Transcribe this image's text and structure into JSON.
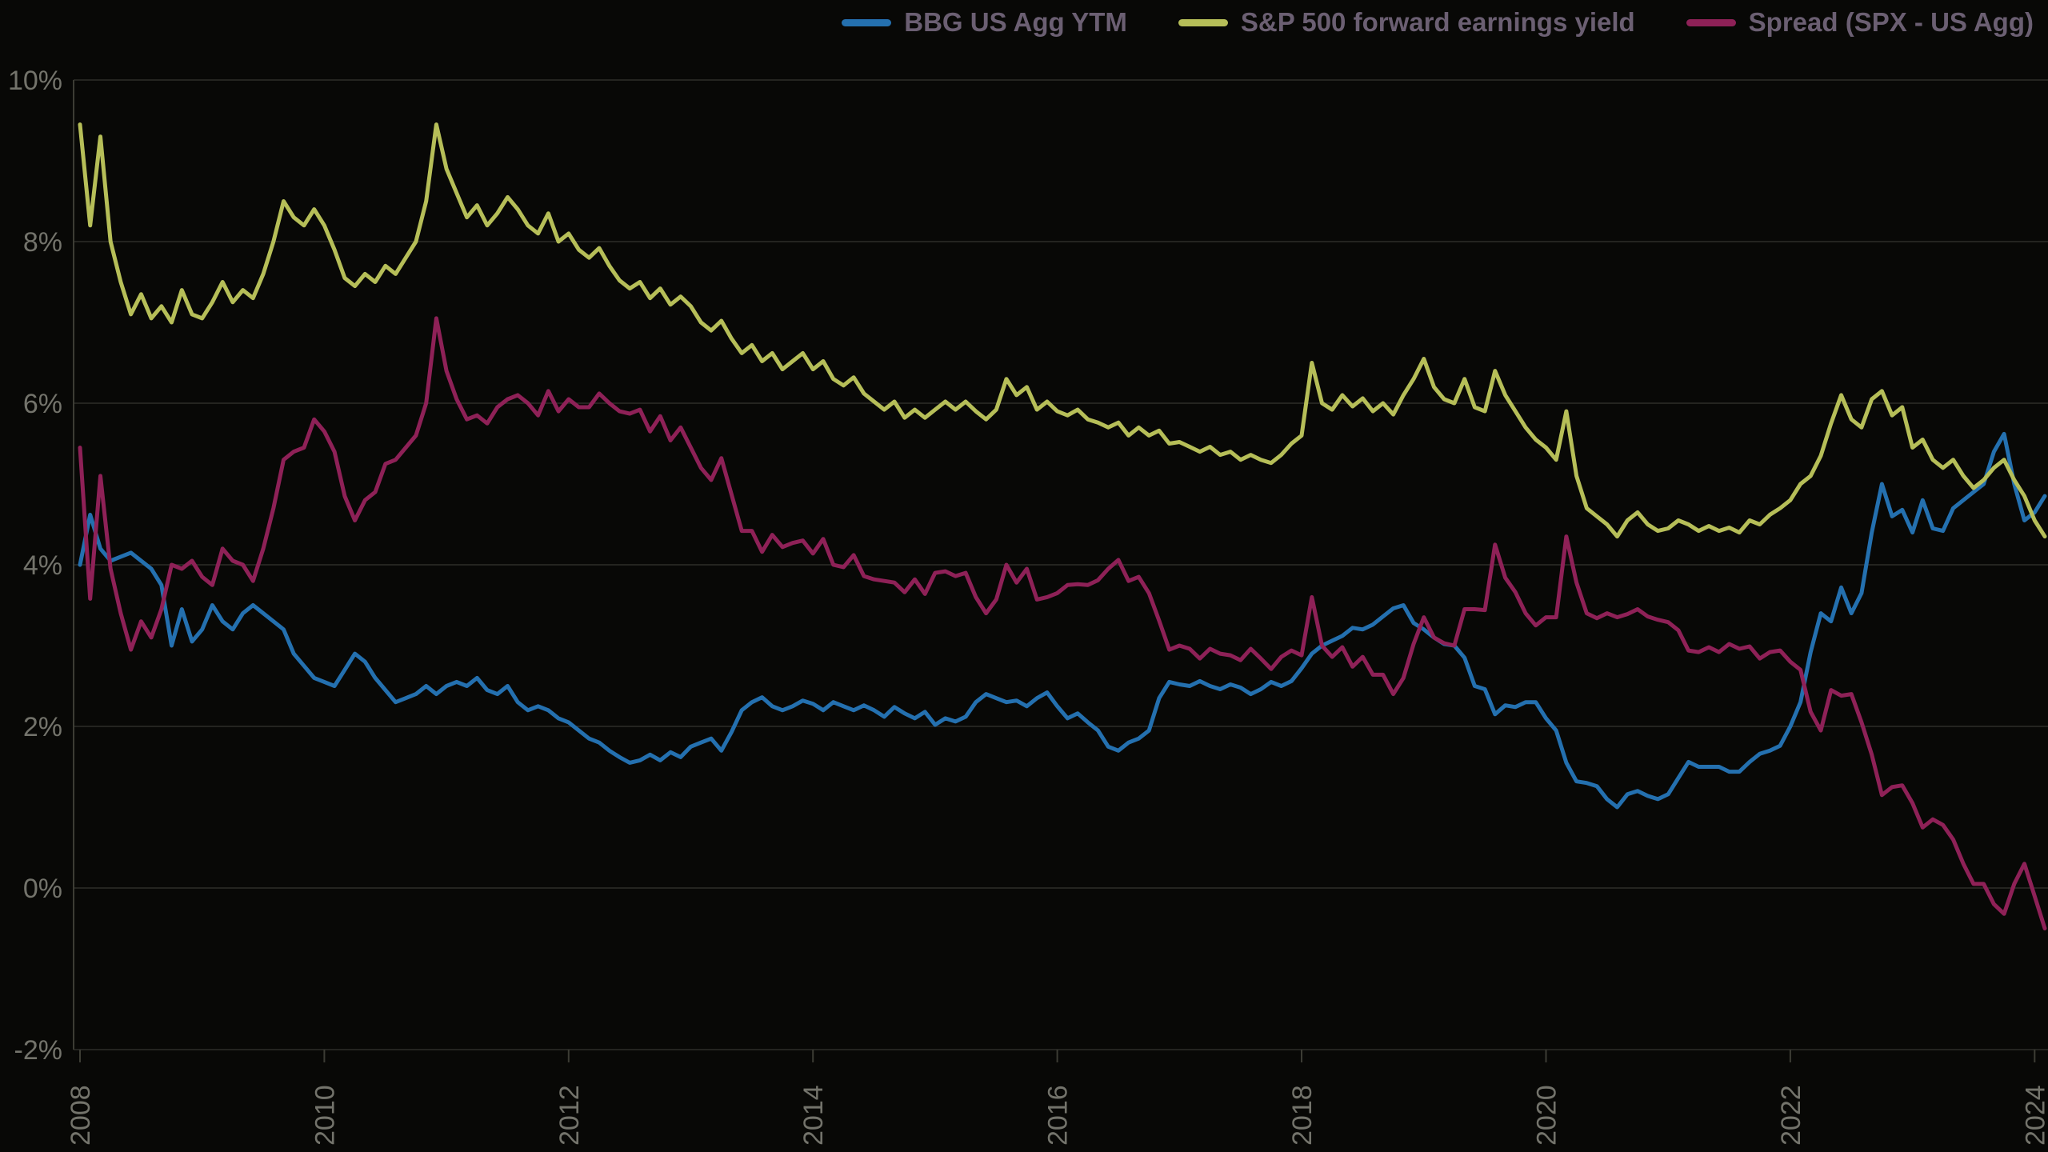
{
  "page": {
    "background_color": "#080806",
    "tick_text_color": "#73736b",
    "legend_text_color": "#6b5f72",
    "gridline_color": "#2e2e28",
    "spine_color": "#3c3c34"
  },
  "chart_data": {
    "type": "line",
    "title": "",
    "xlabel": "",
    "ylabel": "",
    "grid": "horizontal",
    "legend_position": "top-right",
    "ylim": [
      -2,
      10
    ],
    "y_ticks": [
      10,
      8,
      6,
      4,
      2,
      0,
      -2
    ],
    "y_tick_suffix": "%",
    "x_start_year": 2008,
    "x_interval_months": 1,
    "x_end": "2024-02",
    "x_tick_years": [
      2008,
      2010,
      2012,
      2014,
      2016,
      2018,
      2020,
      2022,
      2024
    ],
    "series": [
      {
        "name": "BBG US Agg YTM",
        "color": "#2470af",
        "values": [
          4.0,
          4.62,
          4.2,
          4.05,
          4.1,
          4.15,
          4.05,
          3.95,
          3.75,
          3.0,
          3.45,
          3.05,
          3.2,
          3.5,
          3.3,
          3.2,
          3.4,
          3.5,
          3.4,
          3.3,
          3.2,
          2.9,
          2.75,
          2.6,
          2.55,
          2.5,
          2.7,
          2.9,
          2.8,
          2.6,
          2.45,
          2.3,
          2.35,
          2.4,
          2.5,
          2.4,
          2.5,
          2.55,
          2.5,
          2.6,
          2.45,
          2.4,
          2.5,
          2.3,
          2.2,
          2.25,
          2.2,
          2.1,
          2.05,
          1.95,
          1.85,
          1.8,
          1.7,
          1.62,
          1.55,
          1.58,
          1.65,
          1.58,
          1.68,
          1.62,
          1.75,
          1.8,
          1.85,
          1.7,
          1.93,
          2.2,
          2.3,
          2.36,
          2.25,
          2.2,
          2.25,
          2.32,
          2.28,
          2.2,
          2.3,
          2.25,
          2.2,
          2.26,
          2.2,
          2.12,
          2.24,
          2.16,
          2.1,
          2.18,
          2.02,
          2.1,
          2.06,
          2.12,
          2.3,
          2.4,
          2.35,
          2.3,
          2.32,
          2.25,
          2.35,
          2.42,
          2.25,
          2.1,
          2.16,
          2.05,
          1.95,
          1.75,
          1.7,
          1.8,
          1.85,
          1.95,
          2.35,
          2.55,
          2.52,
          2.5,
          2.56,
          2.5,
          2.46,
          2.52,
          2.48,
          2.4,
          2.46,
          2.55,
          2.5,
          2.56,
          2.72,
          2.9,
          3.0,
          3.06,
          3.12,
          3.22,
          3.2,
          3.26,
          3.36,
          3.46,
          3.5,
          3.28,
          3.2,
          3.1,
          3.02,
          3.0,
          2.85,
          2.5,
          2.46,
          2.15,
          2.26,
          2.24,
          2.3,
          2.3,
          2.1,
          1.95,
          1.55,
          1.32,
          1.3,
          1.26,
          1.1,
          1.0,
          1.16,
          1.2,
          1.14,
          1.1,
          1.16,
          1.36,
          1.56,
          1.5,
          1.5,
          1.5,
          1.44,
          1.44,
          1.56,
          1.66,
          1.7,
          1.76,
          2.0,
          2.3,
          2.92,
          3.4,
          3.3,
          3.72,
          3.4,
          3.65,
          4.4,
          5.0,
          4.6,
          4.68,
          4.4,
          4.8,
          4.45,
          4.42,
          4.7,
          4.8,
          4.9,
          5.0,
          5.4,
          5.62,
          5.0,
          4.55,
          4.65,
          4.85
        ]
      },
      {
        "name": "S&P 500 forward earnings yield",
        "color": "#b6be58",
        "values": [
          9.45,
          8.2,
          9.3,
          8.0,
          7.5,
          7.1,
          7.35,
          7.05,
          7.2,
          7.0,
          7.4,
          7.1,
          7.05,
          7.25,
          7.5,
          7.25,
          7.4,
          7.3,
          7.6,
          8.0,
          8.5,
          8.3,
          8.2,
          8.4,
          8.2,
          7.9,
          7.55,
          7.45,
          7.6,
          7.5,
          7.7,
          7.6,
          7.8,
          8.0,
          8.5,
          9.45,
          8.9,
          8.6,
          8.3,
          8.45,
          8.2,
          8.35,
          8.55,
          8.4,
          8.2,
          8.1,
          8.35,
          8.0,
          8.1,
          7.9,
          7.8,
          7.92,
          7.7,
          7.52,
          7.42,
          7.5,
          7.3,
          7.42,
          7.22,
          7.32,
          7.2,
          7.0,
          6.9,
          7.02,
          6.8,
          6.62,
          6.72,
          6.52,
          6.62,
          6.42,
          6.52,
          6.62,
          6.42,
          6.52,
          6.3,
          6.22,
          6.32,
          6.12,
          6.02,
          5.92,
          6.02,
          5.82,
          5.92,
          5.82,
          5.92,
          6.02,
          5.92,
          6.02,
          5.9,
          5.8,
          5.92,
          6.3,
          6.1,
          6.2,
          5.92,
          6.02,
          5.9,
          5.85,
          5.92,
          5.8,
          5.76,
          5.7,
          5.76,
          5.6,
          5.7,
          5.6,
          5.66,
          5.5,
          5.52,
          5.46,
          5.4,
          5.46,
          5.36,
          5.4,
          5.3,
          5.36,
          5.3,
          5.26,
          5.36,
          5.5,
          5.6,
          6.5,
          6.0,
          5.92,
          6.1,
          5.96,
          6.06,
          5.9,
          6.0,
          5.86,
          6.1,
          6.3,
          6.55,
          6.2,
          6.05,
          6.0,
          6.3,
          5.95,
          5.9,
          6.4,
          6.1,
          5.9,
          5.7,
          5.55,
          5.45,
          5.3,
          5.9,
          5.1,
          4.7,
          4.6,
          4.5,
          4.35,
          4.55,
          4.65,
          4.5,
          4.42,
          4.45,
          4.55,
          4.5,
          4.42,
          4.48,
          4.42,
          4.46,
          4.4,
          4.55,
          4.5,
          4.62,
          4.7,
          4.8,
          5.0,
          5.1,
          5.35,
          5.75,
          6.1,
          5.8,
          5.7,
          6.05,
          6.15,
          5.85,
          5.95,
          5.45,
          5.55,
          5.3,
          5.2,
          5.3,
          5.1,
          4.95,
          5.05,
          5.2,
          5.3,
          5.05,
          4.85,
          4.55,
          4.35
        ]
      },
      {
        "name": "Spread (SPX - US Agg)",
        "color": "#8e2157",
        "values": [
          5.45,
          3.58,
          5.1,
          3.95,
          3.4,
          2.95,
          3.3,
          3.1,
          3.45,
          4.0,
          3.95,
          4.05,
          3.85,
          3.75,
          4.2,
          4.05,
          4.0,
          3.8,
          4.2,
          4.7,
          5.3,
          5.4,
          5.45,
          5.8,
          5.65,
          5.4,
          4.85,
          4.55,
          4.8,
          4.9,
          5.25,
          5.3,
          5.45,
          5.6,
          6.0,
          7.05,
          6.4,
          6.05,
          5.8,
          5.85,
          5.75,
          5.95,
          6.05,
          6.1,
          6.0,
          5.85,
          6.15,
          5.9,
          6.05,
          5.95,
          5.95,
          6.12,
          6.0,
          5.9,
          5.87,
          5.92,
          5.65,
          5.84,
          5.54,
          5.7,
          5.45,
          5.2,
          5.05,
          5.32,
          4.87,
          4.42,
          4.42,
          4.16,
          4.37,
          4.22,
          4.27,
          4.3,
          4.14,
          4.32,
          4.0,
          3.97,
          4.12,
          3.86,
          3.82,
          3.8,
          3.78,
          3.66,
          3.82,
          3.64,
          3.9,
          3.92,
          3.86,
          3.9,
          3.6,
          3.4,
          3.57,
          4.0,
          3.78,
          3.95,
          3.57,
          3.6,
          3.65,
          3.75,
          3.76,
          3.75,
          3.81,
          3.95,
          4.06,
          3.8,
          3.85,
          3.65,
          3.31,
          2.95,
          3.0,
          2.96,
          2.84,
          2.96,
          2.9,
          2.88,
          2.82,
          2.96,
          2.84,
          2.71,
          2.86,
          2.94,
          2.88,
          3.6,
          3.0,
          2.86,
          2.98,
          2.74,
          2.86,
          2.64,
          2.64,
          2.4,
          2.6,
          3.02,
          3.35,
          3.1,
          3.03,
          3.0,
          3.45,
          3.45,
          3.44,
          4.25,
          3.84,
          3.66,
          3.4,
          3.25,
          3.35,
          3.35,
          4.35,
          3.78,
          3.4,
          3.34,
          3.4,
          3.35,
          3.39,
          3.45,
          3.36,
          3.32,
          3.29,
          3.19,
          2.94,
          2.92,
          2.98,
          2.92,
          3.02,
          2.96,
          2.99,
          2.84,
          2.92,
          2.94,
          2.8,
          2.7,
          2.18,
          1.95,
          2.45,
          2.38,
          2.4,
          2.05,
          1.65,
          1.15,
          1.25,
          1.27,
          1.05,
          0.75,
          0.85,
          0.78,
          0.6,
          0.3,
          0.05,
          0.05,
          -0.2,
          -0.32,
          0.05,
          0.3,
          -0.1,
          -0.5
        ]
      }
    ]
  }
}
